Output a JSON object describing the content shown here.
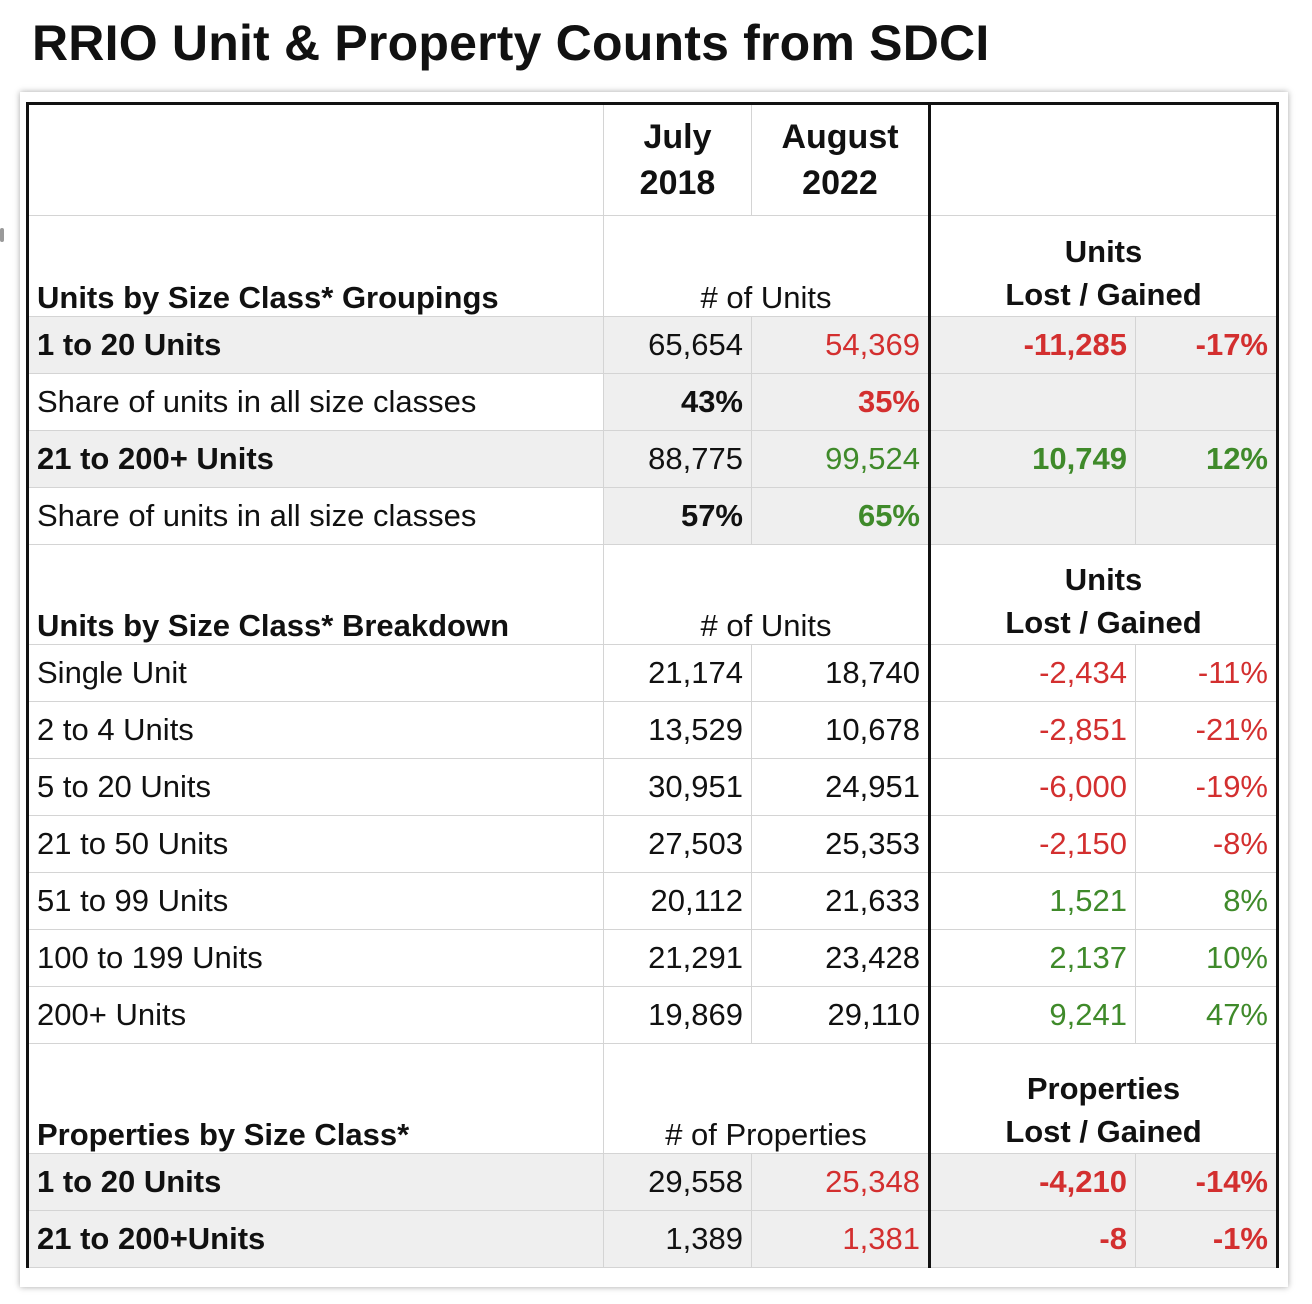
{
  "title": "RRIO Unit & Property Counts from SDCI",
  "columns": {
    "col1": {
      "line1": "July",
      "line2": "2018"
    },
    "col2": {
      "line1": "August",
      "line2": "2022"
    }
  },
  "groupings": {
    "heading": "Units by Size Class* Groupings",
    "count_label": "# of Units",
    "change_label": {
      "line1": "Units",
      "line2": "Lost / Gained"
    },
    "rows": [
      {
        "label": "1 to 20 Units",
        "v2018": "65,654",
        "v2022": "54,369",
        "change": "-11,285",
        "pct": "-17%"
      },
      {
        "label": "Share of units in all size classes",
        "v2018": "43%",
        "v2022": "35%",
        "change": "",
        "pct": ""
      },
      {
        "label": "21 to 200+ Units",
        "v2018": "88,775",
        "v2022": "99,524",
        "change": "10,749",
        "pct": "12%"
      },
      {
        "label": "Share of units in all size classes",
        "v2018": "57%",
        "v2022": "65%",
        "change": "",
        "pct": ""
      }
    ]
  },
  "breakdown": {
    "heading": "Units by Size Class* Breakdown",
    "count_label": "# of Units",
    "change_label": {
      "line1": "Units",
      "line2": "Lost / Gained"
    },
    "rows": [
      {
        "label": "Single Unit",
        "v2018": "21,174",
        "v2022": "18,740",
        "change": "-2,434",
        "pct": "-11%"
      },
      {
        "label": "2 to 4 Units",
        "v2018": "13,529",
        "v2022": "10,678",
        "change": "-2,851",
        "pct": "-21%"
      },
      {
        "label": "5 to 20 Units",
        "v2018": "30,951",
        "v2022": "24,951",
        "change": "-6,000",
        "pct": "-19%"
      },
      {
        "label": "21 to 50 Units",
        "v2018": "27,503",
        "v2022": "25,353",
        "change": "-2,150",
        "pct": "-8%"
      },
      {
        "label": "51 to 99 Units",
        "v2018": "20,112",
        "v2022": "21,633",
        "change": "1,521",
        "pct": "8%"
      },
      {
        "label": "100 to 199 Units",
        "v2018": "21,291",
        "v2022": "23,428",
        "change": "2,137",
        "pct": "10%"
      },
      {
        "label": "200+ Units",
        "v2018": "19,869",
        "v2022": "29,110",
        "change": "9,241",
        "pct": "47%"
      }
    ]
  },
  "properties": {
    "heading": "Properties by Size Class*",
    "count_label": "# of Properties",
    "change_label": {
      "line1": "Properties",
      "line2": "Lost / Gained"
    },
    "rows": [
      {
        "label": "1 to 20 Units",
        "v2018": "29,558",
        "v2022": "25,348",
        "change": "-4,210",
        "pct": "-14%"
      },
      {
        "label": "21 to 200+Units",
        "v2018": "1,389",
        "v2022": "1,381",
        "change": "-8",
        "pct": "-1%"
      }
    ]
  },
  "colors": {
    "loss": "#d32f2f",
    "gain": "#3f8a2a",
    "shade": "#efefef"
  }
}
